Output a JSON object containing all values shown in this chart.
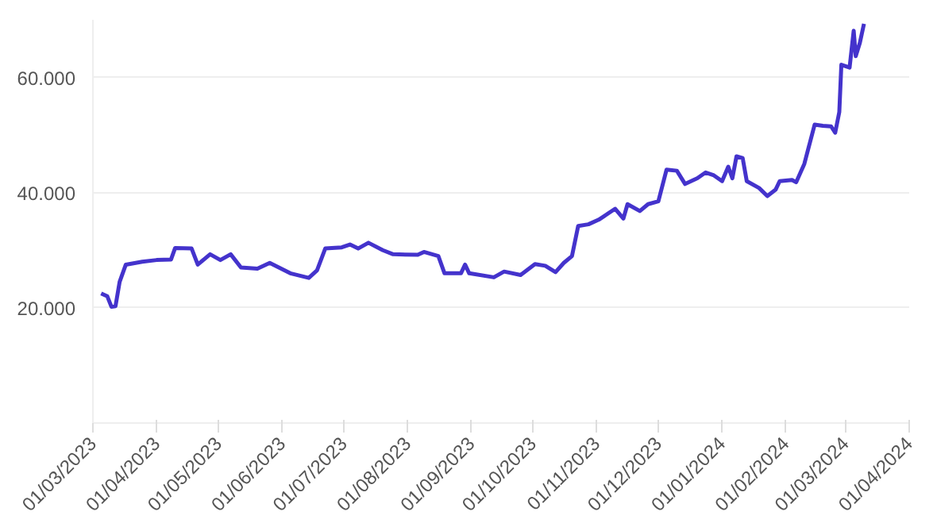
{
  "chart_data": {
    "type": "line",
    "x": [
      "2023-03-05",
      "2023-03-08",
      "2023-03-10",
      "2023-03-12",
      "2023-03-14",
      "2023-03-17",
      "2023-03-25",
      "2023-04-01",
      "2023-04-08",
      "2023-04-10",
      "2023-04-18",
      "2023-04-21",
      "2023-04-27",
      "2023-05-02",
      "2023-05-07",
      "2023-05-12",
      "2023-05-20",
      "2023-05-26",
      "2023-06-05",
      "2023-06-14",
      "2023-06-18",
      "2023-06-22",
      "2023-06-30",
      "2023-07-04",
      "2023-07-08",
      "2023-07-13",
      "2023-07-20",
      "2023-07-25",
      "2023-08-06",
      "2023-08-09",
      "2023-08-16",
      "2023-08-19",
      "2023-08-27",
      "2023-08-29",
      "2023-08-31",
      "2023-09-12",
      "2023-09-17",
      "2023-09-25",
      "2023-10-02",
      "2023-10-07",
      "2023-10-12",
      "2023-10-16",
      "2023-10-20",
      "2023-10-23",
      "2023-10-28",
      "2023-11-02",
      "2023-11-10",
      "2023-11-14",
      "2023-11-16",
      "2023-11-22",
      "2023-11-26",
      "2023-12-01",
      "2023-12-05",
      "2023-12-10",
      "2023-12-14",
      "2023-12-20",
      "2023-12-24",
      "2023-12-28",
      "2024-01-01",
      "2024-01-04",
      "2024-01-06",
      "2024-01-08",
      "2024-01-11",
      "2024-01-13",
      "2024-01-19",
      "2024-01-23",
      "2024-01-27",
      "2024-01-29",
      "2024-02-04",
      "2024-02-06",
      "2024-02-10",
      "2024-02-15",
      "2024-02-19",
      "2024-02-23",
      "2024-02-25",
      "2024-02-27",
      "2024-02-28",
      "2024-03-03",
      "2024-03-05",
      "2024-03-06",
      "2024-03-08",
      "2024-03-10"
    ],
    "series": [
      {
        "color": "#4433cc",
        "values": [
          22500,
          22000,
          20200,
          20300,
          24500,
          27500,
          28000,
          28300,
          28400,
          30400,
          30300,
          27500,
          29300,
          28300,
          29300,
          27000,
          26800,
          27800,
          26000,
          25200,
          26500,
          30300,
          30500,
          31000,
          30300,
          31300,
          30000,
          29300,
          29200,
          29700,
          29000,
          26000,
          26000,
          27500,
          26000,
          25300,
          26300,
          25700,
          27600,
          27300,
          26200,
          27800,
          29000,
          34200,
          34500,
          35300,
          37200,
          35500,
          38000,
          36800,
          38000,
          38500,
          44000,
          43800,
          41500,
          42500,
          43500,
          43000,
          42000,
          44500,
          42500,
          46300,
          46000,
          42000,
          40800,
          39400,
          40500,
          42000,
          42200,
          41800,
          45000,
          51800,
          51600,
          51500,
          50400,
          54000,
          62200,
          61700,
          68100,
          63700,
          66000,
          69300
        ]
      }
    ],
    "xlim": [
      "2023-03-01",
      "2024-04-01"
    ],
    "xticks": [
      {
        "value": "2023-03-01",
        "label": "01/03/2023"
      },
      {
        "value": "2023-04-01",
        "label": "01/04/2023"
      },
      {
        "value": "2023-05-01",
        "label": "01/05/2023"
      },
      {
        "value": "2023-06-01",
        "label": "01/06/2023"
      },
      {
        "value": "2023-07-01",
        "label": "01/07/2023"
      },
      {
        "value": "2023-08-01",
        "label": "01/08/2023"
      },
      {
        "value": "2023-09-01",
        "label": "01/09/2023"
      },
      {
        "value": "2023-10-01",
        "label": "01/10/2023"
      },
      {
        "value": "2023-11-01",
        "label": "01/11/2023"
      },
      {
        "value": "2023-12-01",
        "label": "01/12/2023"
      },
      {
        "value": "2024-01-01",
        "label": "01/01/2024"
      },
      {
        "value": "2024-02-01",
        "label": "01/02/2024"
      },
      {
        "value": "2024-03-01",
        "label": "01/03/2024"
      },
      {
        "value": "2024-04-01",
        "label": "01/04/2024"
      }
    ],
    "ylim": [
      0,
      70000
    ],
    "yticks": [
      {
        "value": 20000,
        "label": "20.000"
      },
      {
        "value": 40000,
        "label": "40.000"
      },
      {
        "value": 60000,
        "label": "60.000"
      }
    ],
    "grid": "y",
    "line_style": "solid"
  }
}
